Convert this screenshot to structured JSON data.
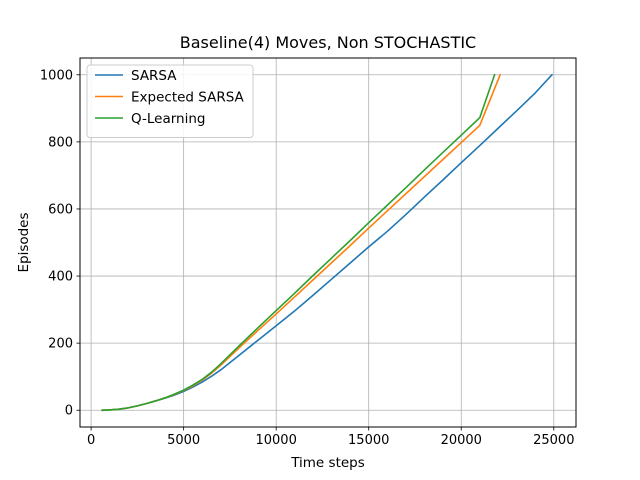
{
  "chart_data": {
    "type": "line",
    "title": "Baseline(4) Moves, Non STOCHASTIC",
    "xlabel": "Time steps",
    "ylabel": "Episodes",
    "xlim": [
      -600,
      26200
    ],
    "ylim": [
      -50,
      1050
    ],
    "xticks": [
      0,
      5000,
      10000,
      15000,
      20000,
      25000
    ],
    "yticks": [
      0,
      200,
      400,
      600,
      800,
      1000
    ],
    "grid": true,
    "legend_position": "top-left",
    "series": [
      {
        "name": "SARSA",
        "color": "#1f77b4",
        "points": [
          [
            600,
            0
          ],
          [
            1000,
            1
          ],
          [
            1500,
            3
          ],
          [
            2000,
            7
          ],
          [
            2500,
            13
          ],
          [
            3000,
            20
          ],
          [
            3500,
            28
          ],
          [
            4000,
            36
          ],
          [
            4500,
            45
          ],
          [
            5000,
            56
          ],
          [
            5500,
            69
          ],
          [
            6000,
            84
          ],
          [
            6500,
            101
          ],
          [
            7000,
            120
          ],
          [
            8000,
            164
          ],
          [
            9000,
            208
          ],
          [
            10000,
            252
          ],
          [
            11000,
            296
          ],
          [
            12000,
            343
          ],
          [
            13000,
            391
          ],
          [
            14000,
            439
          ],
          [
            15000,
            487
          ],
          [
            16000,
            533
          ],
          [
            17000,
            583
          ],
          [
            18000,
            635
          ],
          [
            19000,
            686
          ],
          [
            20000,
            738
          ],
          [
            21000,
            789
          ],
          [
            22000,
            841
          ],
          [
            23000,
            893
          ],
          [
            24000,
            946
          ],
          [
            24900,
            1000
          ]
        ]
      },
      {
        "name": "Expected SARSA",
        "color": "#ff7f0e",
        "points": [
          [
            600,
            0
          ],
          [
            1000,
            1
          ],
          [
            1500,
            3
          ],
          [
            2000,
            7
          ],
          [
            2500,
            13
          ],
          [
            3000,
            20
          ],
          [
            3500,
            28
          ],
          [
            4000,
            37
          ],
          [
            4500,
            47
          ],
          [
            5000,
            59
          ],
          [
            5500,
            73
          ],
          [
            6000,
            90
          ],
          [
            6500,
            110
          ],
          [
            7000,
            134
          ],
          [
            8000,
            186
          ],
          [
            9000,
            237
          ],
          [
            10000,
            287
          ],
          [
            11000,
            338
          ],
          [
            12000,
            389
          ],
          [
            13000,
            440
          ],
          [
            14000,
            491
          ],
          [
            15000,
            543
          ],
          [
            16000,
            594
          ],
          [
            17000,
            645
          ],
          [
            18000,
            696
          ],
          [
            19000,
            747
          ],
          [
            20000,
            798
          ],
          [
            21000,
            849
          ],
          [
            22100,
            1000
          ]
        ]
      },
      {
        "name": "Q-Learning",
        "color": "#2ca02c",
        "points": [
          [
            600,
            0
          ],
          [
            1000,
            1
          ],
          [
            1500,
            3
          ],
          [
            2000,
            7
          ],
          [
            2500,
            13
          ],
          [
            3000,
            20
          ],
          [
            3500,
            28
          ],
          [
            4000,
            37
          ],
          [
            4500,
            48
          ],
          [
            5000,
            60
          ],
          [
            5500,
            75
          ],
          [
            6000,
            92
          ],
          [
            6500,
            113
          ],
          [
            7000,
            138
          ],
          [
            8000,
            192
          ],
          [
            9000,
            245
          ],
          [
            10000,
            297
          ],
          [
            11000,
            349
          ],
          [
            12000,
            402
          ],
          [
            13000,
            454
          ],
          [
            14000,
            506
          ],
          [
            15000,
            559
          ],
          [
            16000,
            611
          ],
          [
            17000,
            663
          ],
          [
            18000,
            716
          ],
          [
            19000,
            768
          ],
          [
            20000,
            820
          ],
          [
            21000,
            872
          ],
          [
            21800,
            1000
          ]
        ]
      }
    ]
  }
}
